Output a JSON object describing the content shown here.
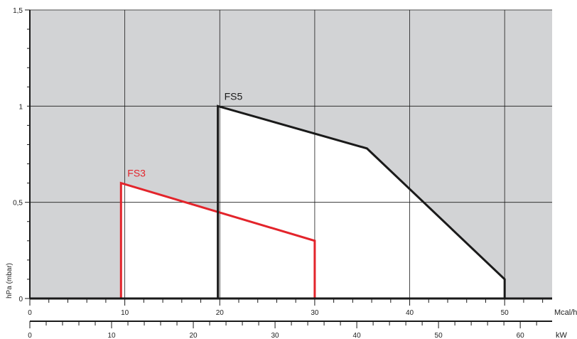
{
  "chart_data": {
    "type": "area",
    "title": "",
    "ylabel": "hPa (mbar)",
    "ylim": [
      0,
      1.5
    ],
    "y_ticks": [
      {
        "value": 0,
        "label": "0"
      },
      {
        "value": 0.5,
        "label": "0,5"
      },
      {
        "value": 1,
        "label": "1"
      },
      {
        "value": 1.5,
        "label": "1,5"
      }
    ],
    "x_axis_primary": {
      "unit": "Mcal/h",
      "range": [
        0,
        55
      ],
      "ticks": [
        {
          "value": 0,
          "label": "0"
        },
        {
          "value": 10,
          "label": "10"
        },
        {
          "value": 20,
          "label": "20"
        },
        {
          "value": 30,
          "label": "30"
        },
        {
          "value": 40,
          "label": "40"
        },
        {
          "value": 50,
          "label": "50"
        }
      ]
    },
    "x_axis_secondary": {
      "unit": "kW",
      "range": [
        0,
        63.9
      ],
      "ticks": [
        {
          "value": 0,
          "label": "0"
        },
        {
          "value": 10,
          "label": "10"
        },
        {
          "value": 20,
          "label": "20"
        },
        {
          "value": 30,
          "label": "30"
        },
        {
          "value": 40,
          "label": "40"
        },
        {
          "value": 50,
          "label": "50"
        },
        {
          "value": 60,
          "label": "60"
        }
      ]
    },
    "grid": true,
    "series": [
      {
        "name": "FS3",
        "color": "#e3242b",
        "points": [
          [
            9.6,
            0
          ],
          [
            9.6,
            0.6
          ],
          [
            30,
            0.3
          ],
          [
            30,
            0
          ]
        ]
      },
      {
        "name": "FS5",
        "color": "#1a1a1a",
        "points": [
          [
            19.8,
            0
          ],
          [
            19.8,
            1.0
          ],
          [
            35.5,
            0.78
          ],
          [
            50,
            0.1
          ],
          [
            50,
            0
          ]
        ]
      }
    ],
    "colors": {
      "background": "#d2d3d5",
      "grid": "#1a1a1a",
      "axis": "#1a1a1a"
    }
  }
}
